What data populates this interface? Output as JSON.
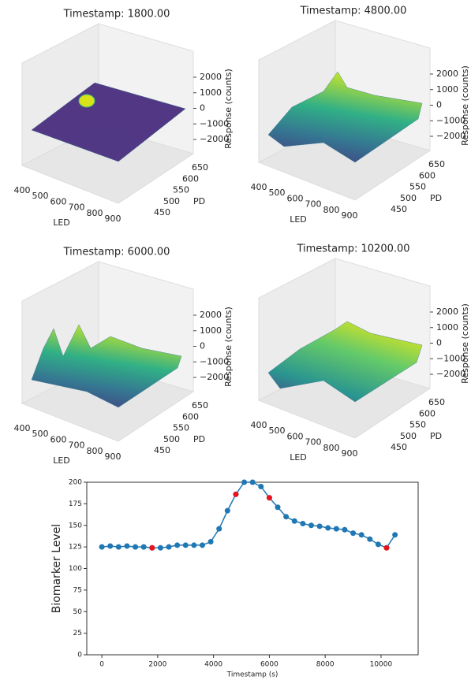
{
  "chart_data": [
    {
      "type": "surface",
      "title": "Timestamp:  1800.00",
      "xlabel": "LED",
      "ylabel": "PD",
      "zlabel": "Response (counts)",
      "xticks": [
        400,
        500,
        600,
        700,
        800,
        900
      ],
      "yticks": [
        450,
        500,
        550,
        600,
        650
      ],
      "zticks": [
        2000,
        1000,
        0,
        {
          "value": -1000,
          "label": "−1000"
        },
        {
          "value": -2000,
          "label": "−2000"
        }
      ]
    },
    {
      "type": "surface",
      "title": "Timestamp:  4800.00",
      "xlabel": "LED",
      "ylabel": "PD",
      "zlabel": "Response (counts)",
      "xticks": [
        400,
        500,
        600,
        700,
        800,
        900
      ],
      "yticks": [
        450,
        500,
        550,
        600,
        650
      ],
      "zticks": [
        2000,
        1000,
        0,
        {
          "value": -1000,
          "label": "−1000"
        },
        {
          "value": -2000,
          "label": "−2000"
        }
      ]
    },
    {
      "type": "surface",
      "title": "Timestamp:  6000.00",
      "xlabel": "LED",
      "ylabel": "PD",
      "zlabel": "Response (counts)",
      "xticks": [
        400,
        500,
        600,
        700,
        800,
        900
      ],
      "yticks": [
        450,
        500,
        550,
        600,
        650
      ],
      "zticks": [
        2000,
        1000,
        0,
        {
          "value": -1000,
          "label": "−1000"
        },
        {
          "value": -2000,
          "label": "−2000"
        }
      ]
    },
    {
      "type": "surface",
      "title": "Timestamp:  10200.00",
      "xlabel": "LED",
      "ylabel": "PD",
      "zlabel": "Response (counts)",
      "xticks": [
        400,
        500,
        600,
        700,
        800,
        900
      ],
      "yticks": [
        450,
        500,
        550,
        600,
        650
      ],
      "zticks": [
        2000,
        1000,
        0,
        {
          "value": -1000,
          "label": "−1000"
        },
        {
          "value": -2000,
          "label": "−2000"
        }
      ]
    },
    {
      "type": "line",
      "xlabel": "Timestamp (s)",
      "ylabel": "Biomarker Level",
      "xlim": [
        -540,
        11330
      ],
      "ylim": [
        0,
        200
      ],
      "xticks": [
        0,
        2000,
        4000,
        6000,
        8000,
        10000
      ],
      "yticks": [
        0,
        25,
        50,
        75,
        100,
        125,
        150,
        175,
        200
      ],
      "series": [
        {
          "color": "#1f77b4",
          "x": [
            0,
            300,
            600,
            900,
            1200,
            1500,
            1800,
            2100,
            2400,
            2700,
            3000,
            3300,
            3600,
            3900,
            4200,
            4500,
            4800,
            5100,
            5400,
            5700,
            6000,
            6300,
            6600,
            6900,
            7200,
            7500,
            7800,
            8100,
            8400,
            8700,
            9000,
            9300,
            9600,
            9900,
            10200,
            10500
          ],
          "values": [
            125,
            126,
            125,
            126,
            125,
            125,
            124,
            124,
            125,
            127,
            127,
            127,
            127,
            131,
            146,
            167,
            186,
            200,
            200,
            195,
            182,
            171,
            160,
            155,
            152,
            150,
            149,
            147,
            146,
            145,
            141,
            139,
            134,
            128,
            124,
            139
          ]
        },
        {
          "color": "#e8141c",
          "style": "markers",
          "x": [
            1800,
            4800,
            6000,
            10200
          ],
          "values": [
            124,
            186,
            182,
            124
          ]
        }
      ]
    }
  ]
}
